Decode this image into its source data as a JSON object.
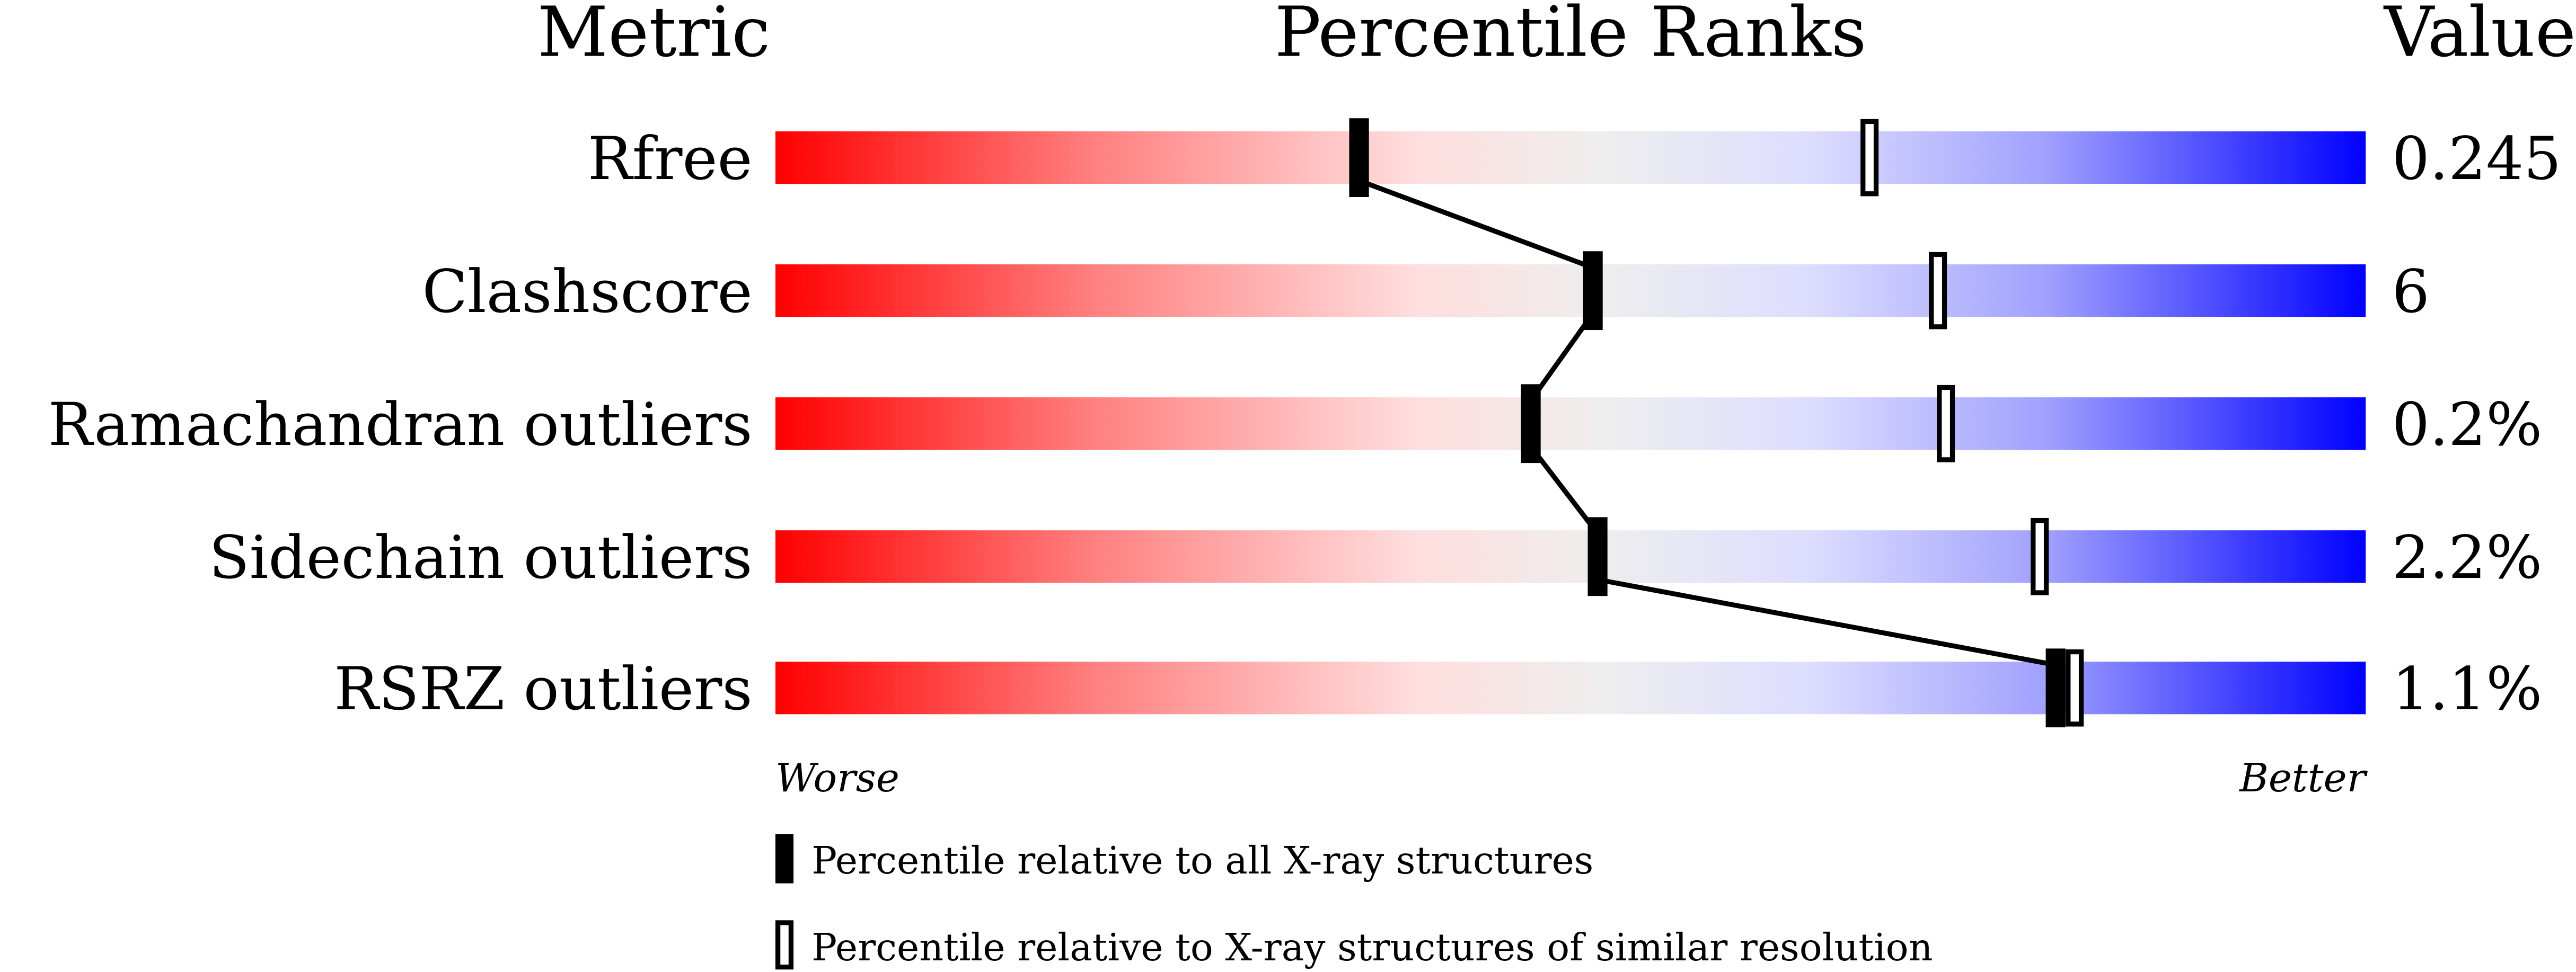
{
  "chart_data": {
    "type": "bar",
    "headers": {
      "metric": "Metric",
      "ranks": "Percentile Ranks",
      "value": "Value"
    },
    "xlim": [
      0,
      100
    ],
    "rows": [
      {
        "metric": "Rfree",
        "value": "0.245",
        "percentile_all": 36.7,
        "percentile_similar": 68.8
      },
      {
        "metric": "Clashscore",
        "value": "6",
        "percentile_all": 51.4,
        "percentile_similar": 73.1
      },
      {
        "metric": "Ramachandran outliers",
        "value": "0.2%",
        "percentile_all": 47.5,
        "percentile_similar": 73.6
      },
      {
        "metric": "Sidechain outliers",
        "value": "2.2%",
        "percentile_all": 51.7,
        "percentile_similar": 79.5
      },
      {
        "metric": "RSRZ outliers",
        "value": "1.1%",
        "percentile_all": 80.5,
        "percentile_similar": 81.7
      }
    ],
    "axis_labels": {
      "left": "Worse",
      "right": "Better"
    },
    "legend": {
      "filled": "Percentile relative to all X-ray structures",
      "open": "Percentile relative to X-ray structures of similar resolution"
    },
    "colors": {
      "worse": "#ff0000",
      "middle": "#eeeeee",
      "better": "#0000ff",
      "marker": "#000000"
    }
  }
}
